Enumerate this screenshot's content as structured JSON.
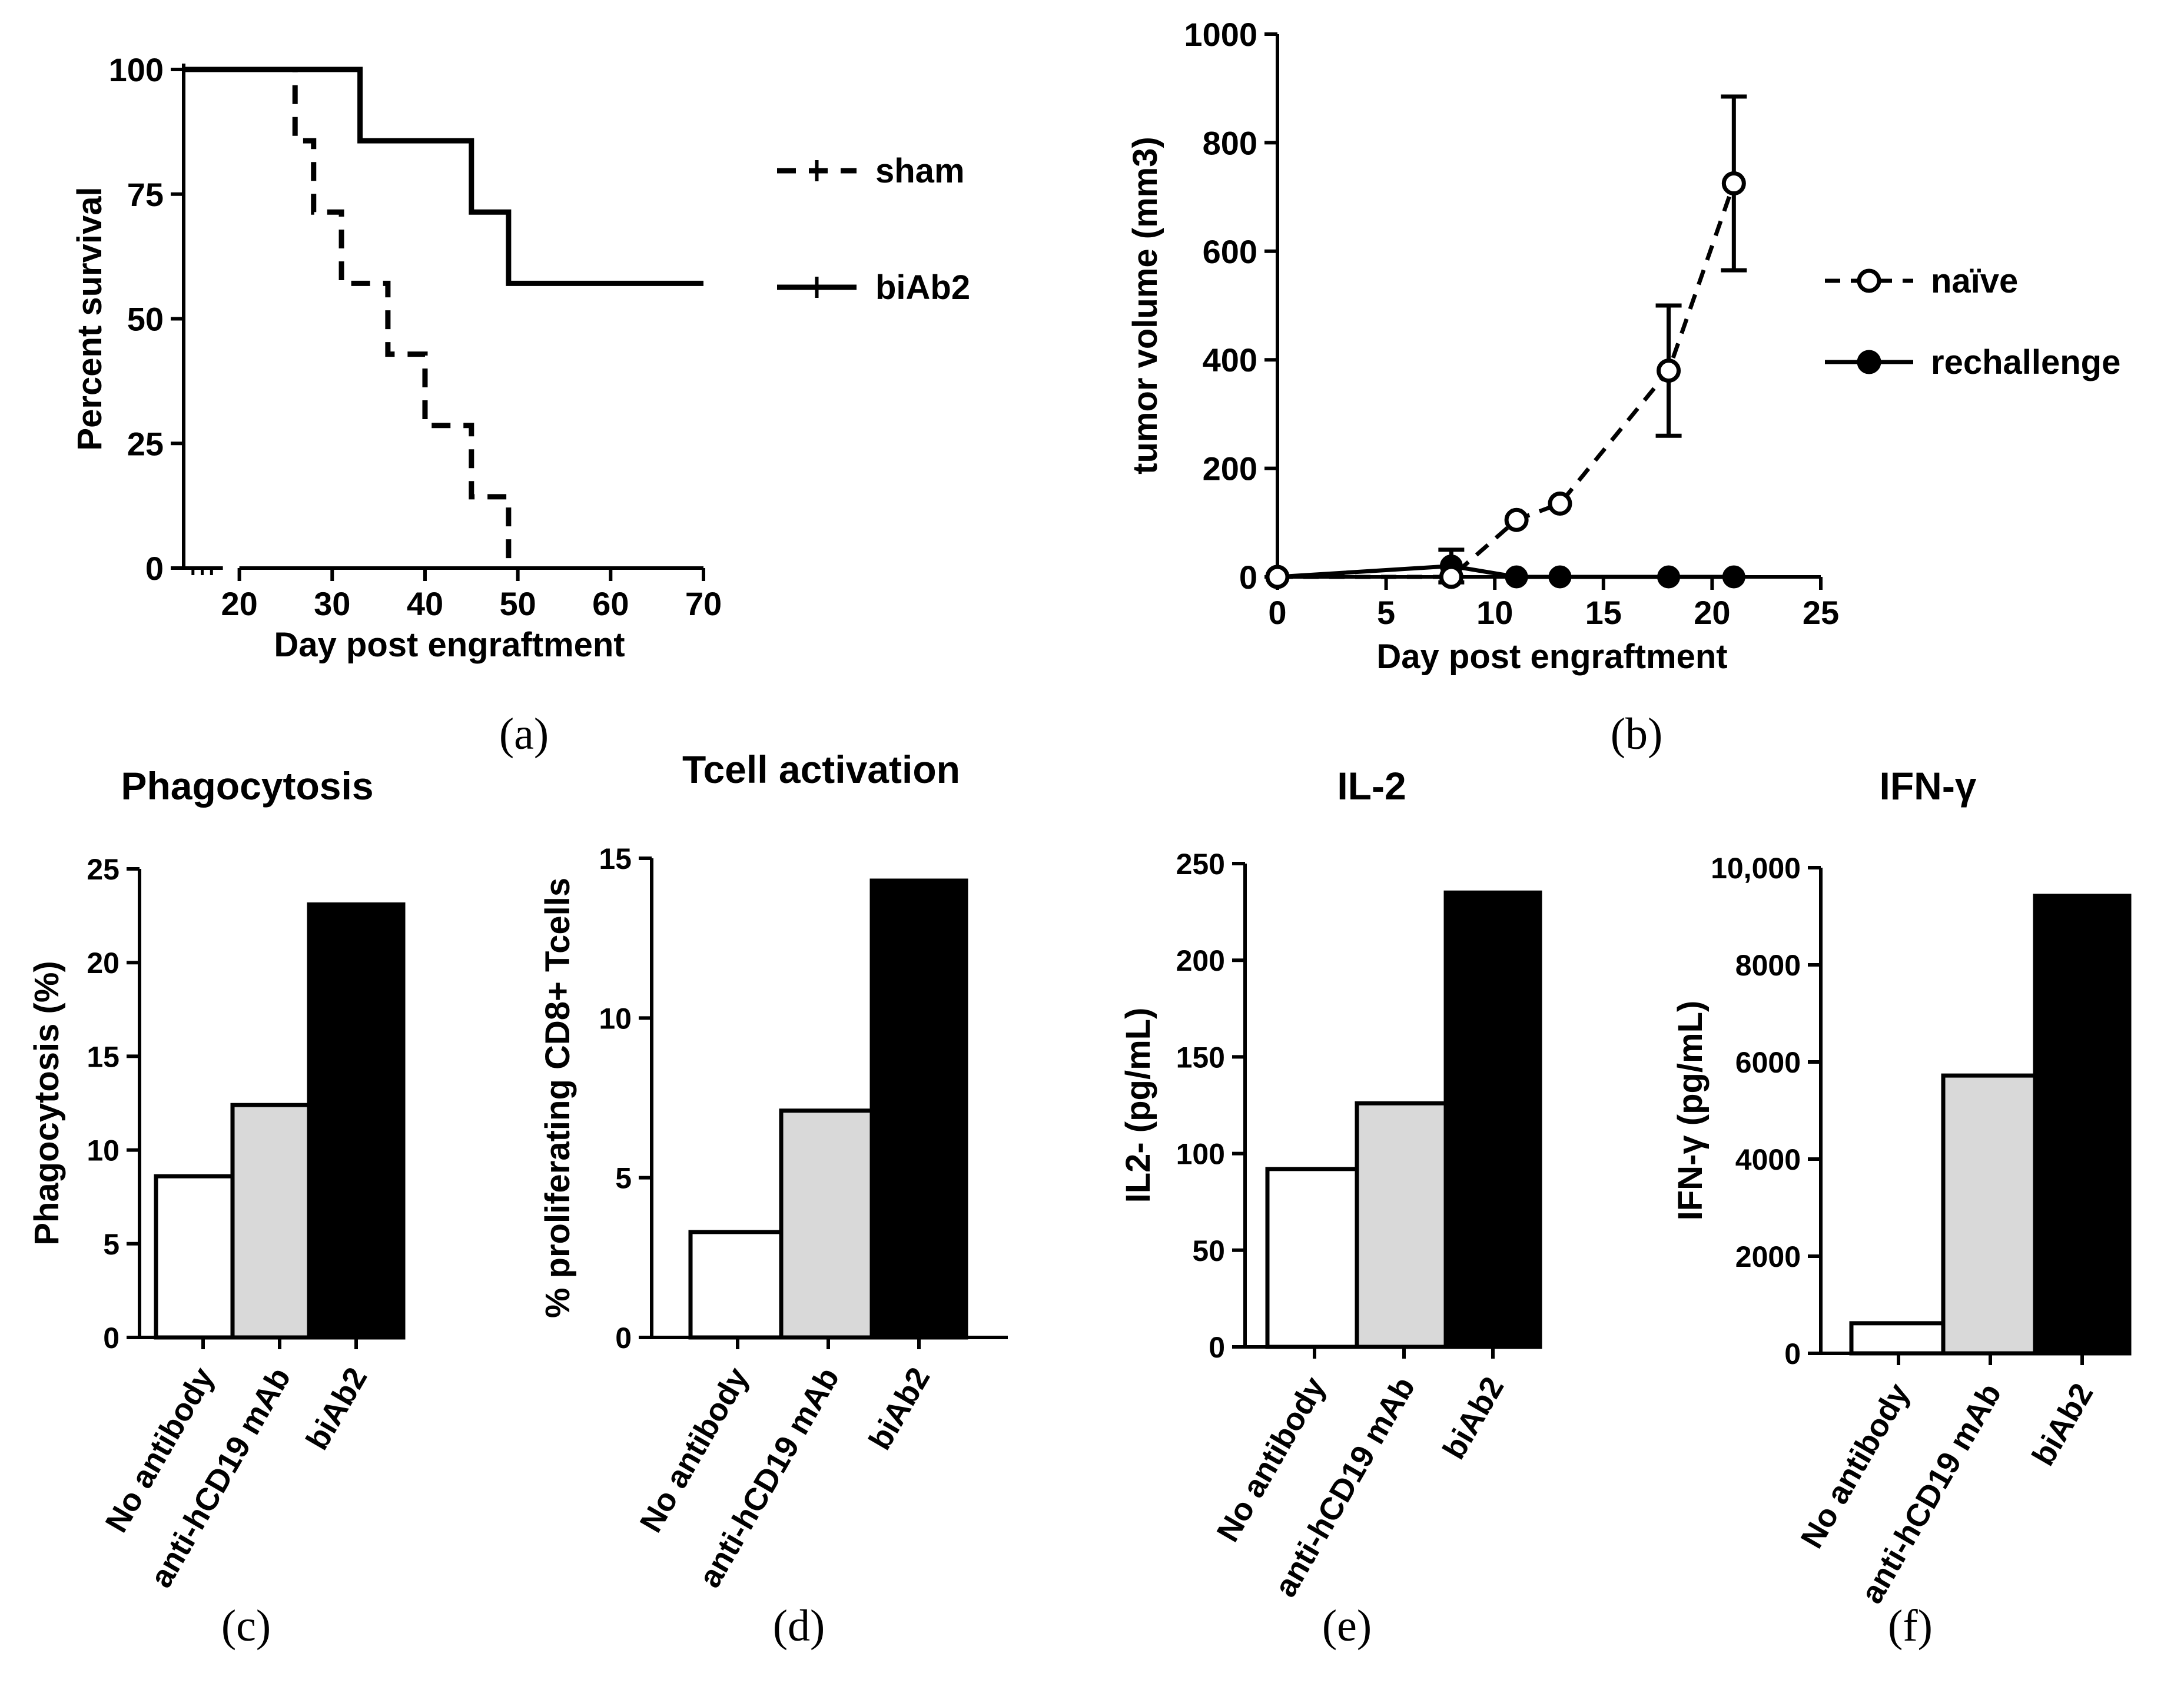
{
  "chart_data": [
    {
      "panel_label": "(a)",
      "type": "line",
      "subtype": "kaplan-meier",
      "xlabel": "Day post engraftment",
      "ylabel": "Percent survival",
      "xlim": [
        14,
        70
      ],
      "ylim": [
        0,
        100
      ],
      "xticks": [
        "20",
        "30",
        "40",
        "50",
        "60",
        "70"
      ],
      "yticks": [
        "0",
        "25",
        "50",
        "75",
        "100"
      ],
      "axis_break": "x between 14 and 20",
      "legend_position": "right",
      "series": [
        {
          "name": "sham",
          "style": "dashed",
          "x": [
            14,
            26,
            26,
            28,
            28,
            31,
            31,
            36,
            36,
            40,
            40,
            45,
            45,
            49,
            49
          ],
          "y": [
            100,
            100,
            85.7,
            85.7,
            71.4,
            71.4,
            57.1,
            57.1,
            42.9,
            42.9,
            28.6,
            28.6,
            14.3,
            14.3,
            0
          ]
        },
        {
          "name": "biAb2",
          "style": "solid",
          "x": [
            14,
            33,
            33,
            45,
            45,
            49,
            49,
            70
          ],
          "y": [
            100,
            100,
            85.7,
            85.7,
            71.4,
            71.4,
            57.1,
            57.1
          ]
        }
      ]
    },
    {
      "panel_label": "(b)",
      "type": "line",
      "xlabel": "Day post engraftment",
      "ylabel": "tumor volume (mm3)",
      "xlim": [
        0,
        25
      ],
      "ylim": [
        0,
        1000
      ],
      "xticks": [
        "0",
        "5",
        "10",
        "15",
        "20",
        "25"
      ],
      "yticks": [
        "0",
        "200",
        "400",
        "600",
        "800",
        "1000"
      ],
      "legend_position": "right",
      "series": [
        {
          "name": "naïve",
          "style": "dashed",
          "marker": "open-circle",
          "x": [
            0,
            8,
            11,
            13,
            18,
            21
          ],
          "y": [
            0,
            0,
            105,
            135,
            380,
            725
          ],
          "err": [
            0,
            0,
            0,
            0,
            120,
            160
          ]
        },
        {
          "name": "rechallenge",
          "style": "solid",
          "marker": "filled-circle",
          "x": [
            0,
            8,
            11,
            13,
            18,
            21
          ],
          "y": [
            0,
            20,
            0,
            0,
            0,
            0
          ],
          "err": [
            0,
            30,
            0,
            0,
            0,
            0
          ]
        }
      ]
    },
    {
      "panel_label": "(c)",
      "type": "bar",
      "title": "Phagocytosis",
      "ylabel": "Phagocytosis (%)",
      "ylim": [
        0,
        25
      ],
      "yticks": [
        "0",
        "5",
        "10",
        "15",
        "20",
        "25"
      ],
      "categories": [
        "No  antibody",
        "anti-hCD19 mAb",
        "biAb2"
      ],
      "values": [
        8.6,
        12.4,
        23.1
      ],
      "bar_colors": [
        "#ffffff",
        "#d9d9d9",
        "#000000"
      ]
    },
    {
      "panel_label": "(d)",
      "type": "bar",
      "title": "Tcell activation",
      "ylabel": "% proliferating CD8+ Tcells",
      "ylim": [
        0,
        15
      ],
      "yticks": [
        "0",
        "5",
        "10",
        "15"
      ],
      "categories": [
        "No  antibody",
        "anti-hCD19 mAb",
        "biAb2"
      ],
      "values": [
        3.3,
        7.1,
        14.3
      ],
      "bar_colors": [
        "#ffffff",
        "#d9d9d9",
        "#000000"
      ]
    },
    {
      "panel_label": "(e)",
      "type": "bar",
      "title": "IL-2",
      "ylabel": "IL2-  (pg/mL)",
      "ylim": [
        0,
        250
      ],
      "yticks": [
        "0",
        "50",
        "100",
        "150",
        "200",
        "250"
      ],
      "categories": [
        "No  antibody",
        "anti-hCD19 mAb",
        "biAb2"
      ],
      "values": [
        92,
        126,
        235
      ],
      "bar_colors": [
        "#ffffff",
        "#d9d9d9",
        "#000000"
      ]
    },
    {
      "panel_label": "(f)",
      "type": "bar",
      "title": "IFN-γ",
      "ylabel": "IFN-γ (pg/mL)",
      "ylim": [
        0,
        10000
      ],
      "yticks": [
        "0",
        "2000",
        "4000",
        "6000",
        "8000",
        "10,000"
      ],
      "categories": [
        "No  antibody",
        "anti-hCD19 mAb",
        "biAb2"
      ],
      "values": [
        620,
        5720,
        9420
      ],
      "bar_colors": [
        "#ffffff",
        "#d9d9d9",
        "#000000"
      ]
    }
  ]
}
